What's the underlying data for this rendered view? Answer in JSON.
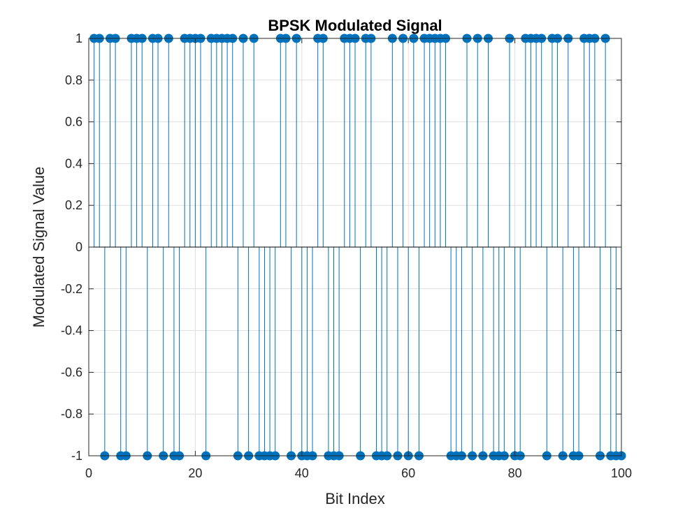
{
  "chart_data": {
    "type": "stem",
    "title": "BPSK Modulated Signal",
    "xlabel": "Bit Index",
    "ylabel": "Modulated Signal Value",
    "xlim": [
      0,
      100
    ],
    "ylim": [
      -1,
      1
    ],
    "xticks": [
      "0",
      "20",
      "40",
      "60",
      "80",
      "100"
    ],
    "yticks": [
      "1",
      "0.8",
      "0.6",
      "0.4",
      "0.2",
      "0",
      "-0.2",
      "-0.4",
      "-0.6",
      "-0.8",
      "-1"
    ],
    "grid": true,
    "color": "#0072BD",
    "x": [
      1,
      2,
      3,
      4,
      5,
      6,
      7,
      8,
      9,
      10,
      11,
      12,
      13,
      14,
      15,
      16,
      17,
      18,
      19,
      20,
      21,
      22,
      23,
      24,
      25,
      26,
      27,
      28,
      29,
      30,
      31,
      32,
      33,
      34,
      35,
      36,
      37,
      38,
      39,
      40,
      41,
      42,
      43,
      44,
      45,
      46,
      47,
      48,
      49,
      50,
      51,
      52,
      53,
      54,
      55,
      56,
      57,
      58,
      59,
      60,
      61,
      62,
      63,
      64,
      65,
      66,
      67,
      68,
      69,
      70,
      71,
      72,
      73,
      74,
      75,
      76,
      77,
      78,
      79,
      80,
      81,
      82,
      83,
      84,
      85,
      86,
      87,
      88,
      89,
      90,
      91,
      92,
      93,
      94,
      95,
      96,
      97,
      98,
      99,
      100
    ],
    "values": [
      1,
      1,
      -1,
      1,
      1,
      -1,
      -1,
      1,
      1,
      1,
      -1,
      1,
      1,
      -1,
      1,
      -1,
      -1,
      1,
      1,
      1,
      1,
      -1,
      1,
      1,
      1,
      1,
      1,
      -1,
      1,
      -1,
      1,
      -1,
      -1,
      -1,
      -1,
      1,
      1,
      -1,
      1,
      -1,
      -1,
      -1,
      1,
      1,
      -1,
      -1,
      -1,
      1,
      1,
      1,
      -1,
      1,
      1,
      -1,
      -1,
      -1,
      1,
      -1,
      1,
      -1,
      1,
      -1,
      1,
      1,
      1,
      1,
      1,
      -1,
      -1,
      -1,
      1,
      -1,
      1,
      -1,
      1,
      -1,
      -1,
      -1,
      1,
      -1,
      -1,
      1,
      1,
      1,
      1,
      -1,
      1,
      1,
      -1,
      1,
      -1,
      -1,
      1,
      1,
      1,
      -1,
      1,
      -1,
      -1,
      -1
    ]
  }
}
